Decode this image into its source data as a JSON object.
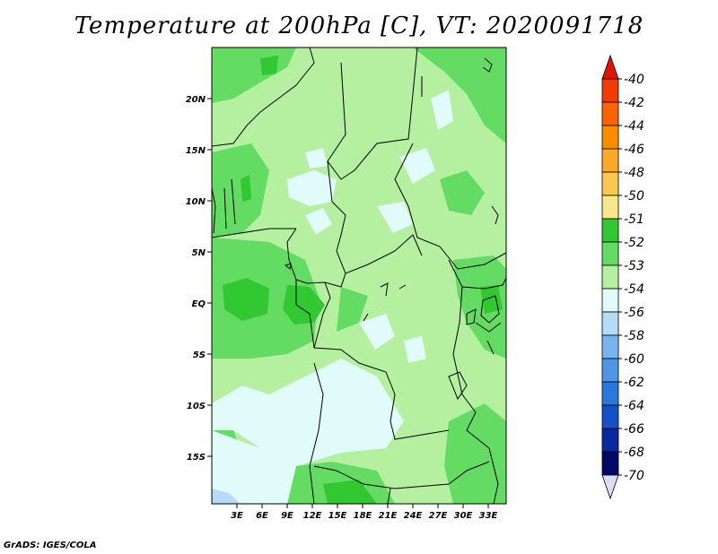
{
  "title": "Temperature at 200hPa [C], VT: 2020091718",
  "credit": "GrADS: IGES/COLA",
  "map": {
    "lat_labels": [
      "20N",
      "15N",
      "10N",
      "5N",
      "EQ",
      "5S",
      "10S",
      "15S"
    ],
    "lon_labels": [
      "3E",
      "6E",
      "9E",
      "12E",
      "15E",
      "18E",
      "21E",
      "24E",
      "27E",
      "30E",
      "33E"
    ]
  },
  "colorbar": {
    "levels": [
      "-40",
      "-42",
      "-44",
      "-46",
      "-48",
      "-50",
      "-51",
      "-52",
      "-53",
      "-54",
      "-56",
      "-58",
      "-60",
      "-62",
      "-64",
      "-66",
      "-68",
      "-70"
    ],
    "colors": [
      "#e11400",
      "#f03c00",
      "#fa6400",
      "#fa8c00",
      "#faaa28",
      "#fac850",
      "#fae68c",
      "#32c832",
      "#64dc64",
      "#b4f0a0",
      "#e1fafa",
      "#b4dcfa",
      "#78b4f0",
      "#5096e6",
      "#2a78dc",
      "#1450c8",
      "#0a28a0",
      "#000a64",
      "#dcdcf5"
    ]
  }
}
